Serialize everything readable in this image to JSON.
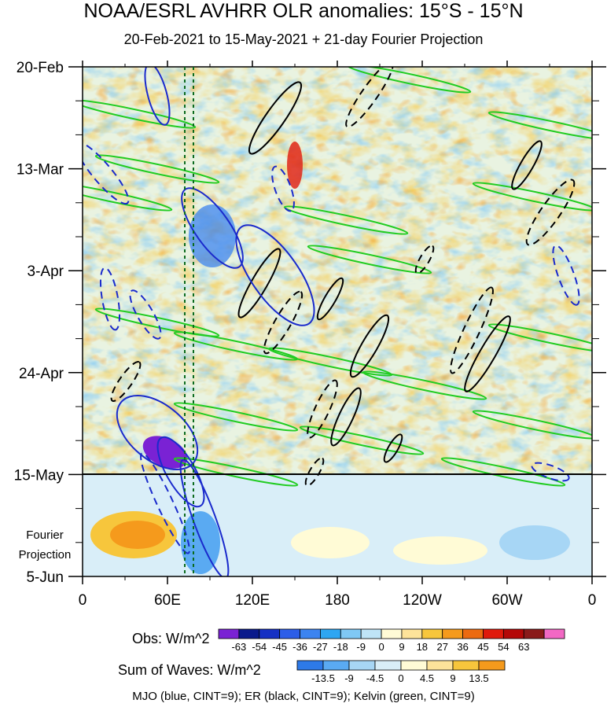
{
  "title": "NOAA/ESRL AVHRR OLR anomalies: 15°S - 15°N",
  "subtitle": "20-Feb-2021 to 15-May-2021 + 21-day Fourier Projection",
  "chart_data": {
    "type": "heatmap",
    "title": "NOAA/ESRL AVHRR OLR anomalies: 15°S - 15°N",
    "subtitle": "20-Feb-2021 to 15-May-2021 + 21-day Fourier Projection",
    "x_axis": {
      "ticks": [
        {
          "lon": 0,
          "label": "0"
        },
        {
          "lon": 60,
          "label": "60E"
        },
        {
          "lon": 120,
          "label": "120E"
        },
        {
          "lon": 180,
          "label": "180"
        },
        {
          "lon": 240,
          "label": "120W"
        },
        {
          "lon": 300,
          "label": "60W"
        },
        {
          "lon": 360,
          "label": "0"
        }
      ],
      "range": [
        0,
        360
      ]
    },
    "y_axis": {
      "ticks": [
        "20-Feb",
        "13-Mar",
        "3-Apr",
        "24-Apr",
        "15-May",
        "5-Jun"
      ],
      "range": [
        "20-Feb",
        "5-Jun"
      ]
    },
    "projection_label": "Fourier Projection",
    "projection_start": "15-May",
    "reference_lines_lon": [
      72,
      78
    ],
    "obs_colorbar": {
      "label": "Obs: W/m^2",
      "levels": [
        -63,
        -54,
        -45,
        -36,
        -27,
        -18,
        -9,
        0,
        9,
        18,
        27,
        36,
        45,
        54,
        63
      ],
      "colors": [
        "#7a22d4",
        "#0a1a8c",
        "#1530c4",
        "#2d5ee8",
        "#3c84f0",
        "#2ea6f2",
        "#7fc8f5",
        "#bfe4f7",
        "#fffbd6",
        "#fde39a",
        "#f7c63c",
        "#f59a1c",
        "#ec6a10",
        "#e01a0c",
        "#b40808",
        "#8a1a1a",
        "#f268c4"
      ]
    },
    "waves_colorbar": {
      "label": "Sum of Waves: W/m^2",
      "levels": [
        -13.5,
        -9,
        -4.5,
        0,
        4.5,
        9,
        13.5
      ],
      "colors": [
        "#2d7ae8",
        "#5aaaf2",
        "#a7d6f5",
        "#d9eef8",
        "#fffbd6",
        "#fde39a",
        "#f7c63c",
        "#f59a1c"
      ]
    },
    "contour_note": "MJO (blue, CINT=9); ER (black, CINT=9); Kelvin (green, CINT=9)",
    "series_colors": {
      "MJO": "#1a2acc",
      "ER": "#000000",
      "Kelvin": "#22cc22"
    }
  }
}
